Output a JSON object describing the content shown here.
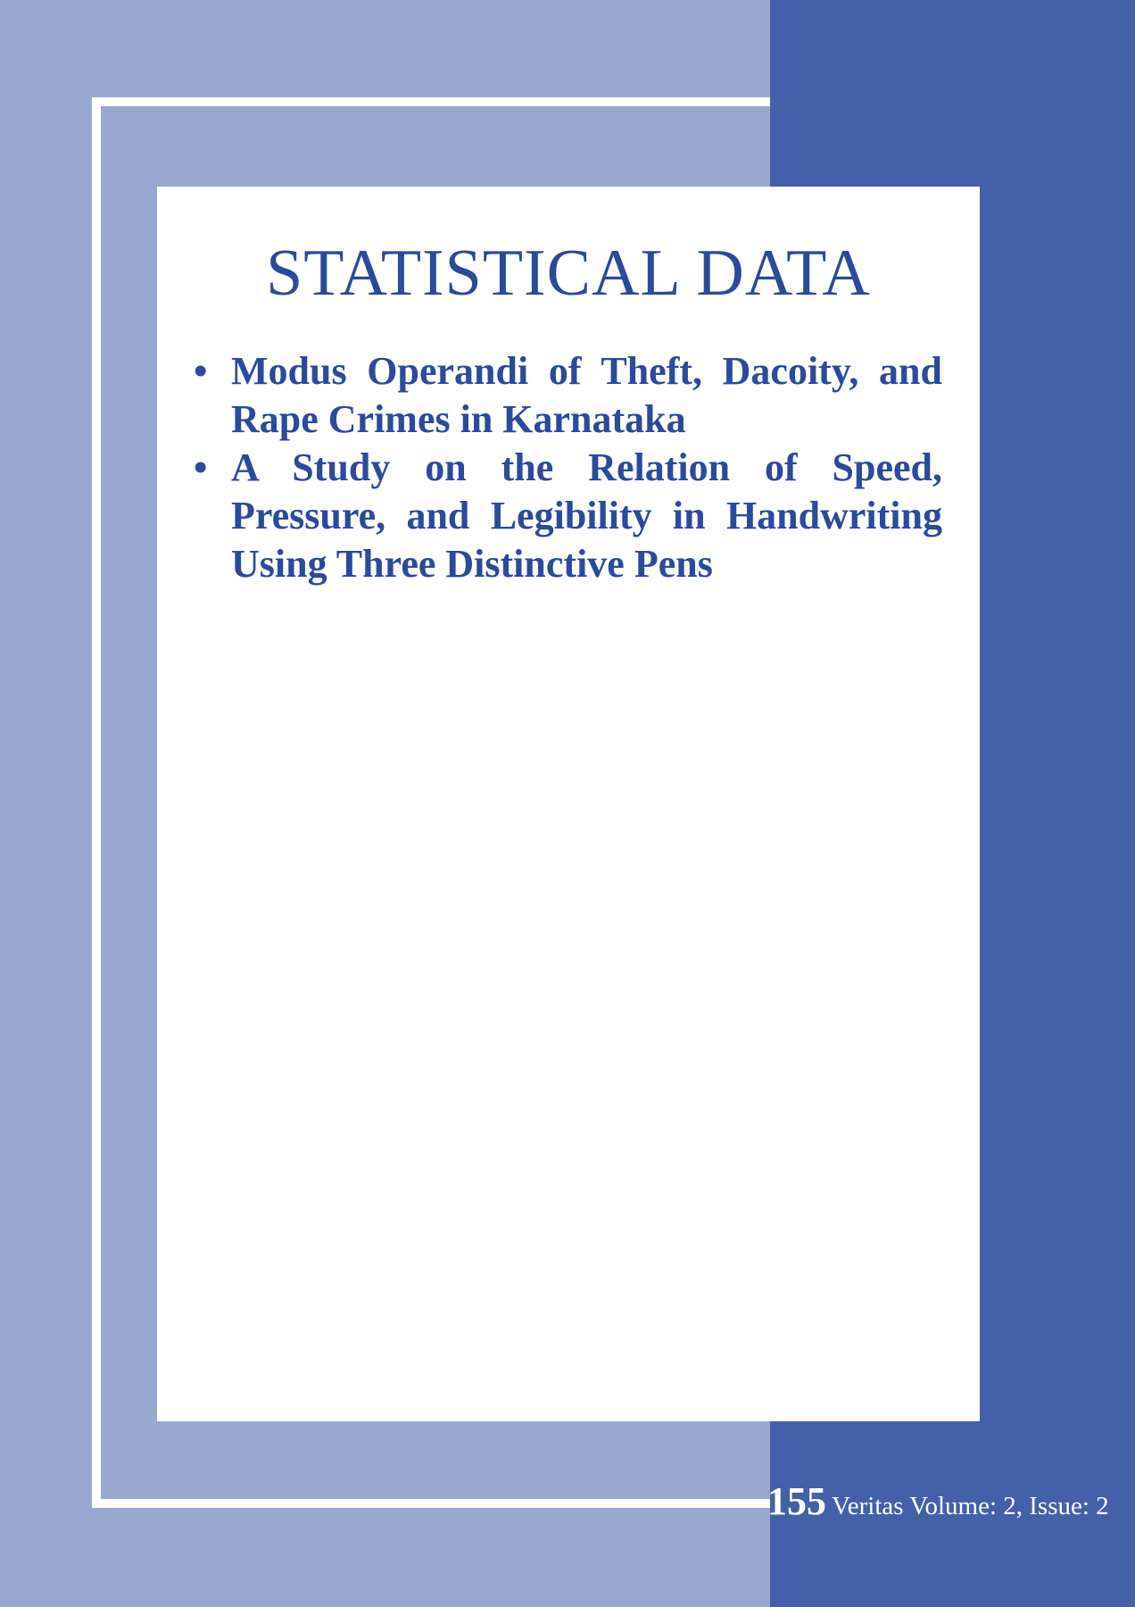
{
  "page": {
    "title": "STATISTICAL DATA",
    "articles": [
      {
        "title": "Modus Operandi of Theft, Dacoity, and Rape Crimes in Karnataka"
      },
      {
        "title": "A Study on the Relation of Speed, Pressure, and Legibility in Handwriting Using Three Distinctive Pens"
      }
    ],
    "bullet": "•"
  },
  "footer": {
    "page_number": "155",
    "journal_info": "Veritas Volume: 2, Issue: 2"
  },
  "colors": {
    "background": "#98a8d0",
    "band": "#4460a8",
    "accent_text": "#2b4a9c",
    "card": "#ffffff"
  }
}
